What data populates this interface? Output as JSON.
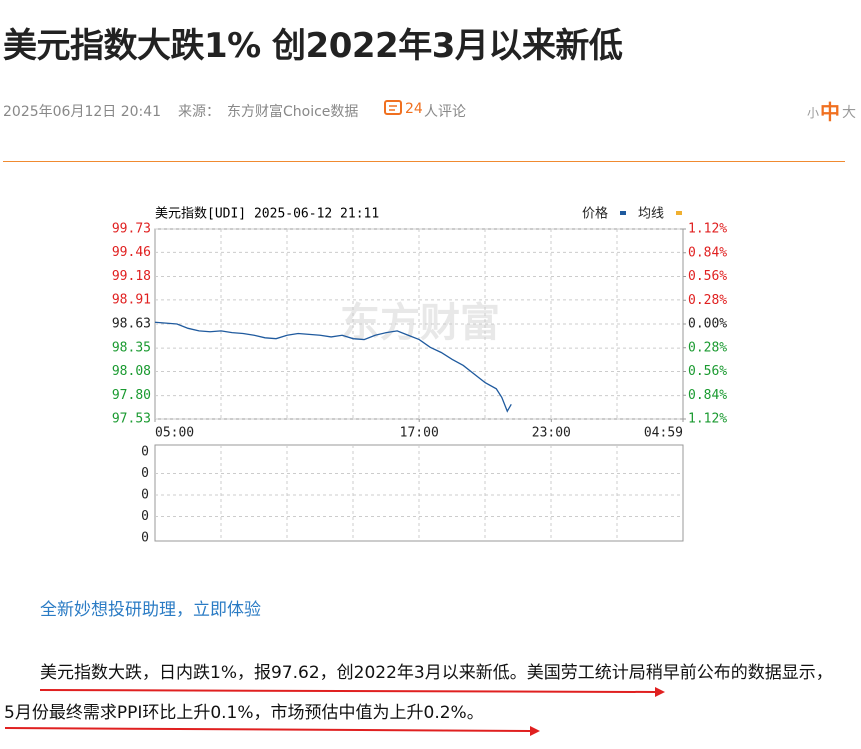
{
  "header": {
    "title": "美元指数大跌1% 创2022年3月以来新低",
    "datetime": "2025年06月12日 20:41",
    "source_label": "来源：",
    "source": "东方财富Choice数据",
    "comment_count": "24",
    "comment_label": "人评论",
    "font_sizes": [
      "小",
      "中",
      "大"
    ]
  },
  "chart_data": {
    "type": "line",
    "title": "美元指数[UDI] 2025-06-12 21:11",
    "watermark": "东方财富",
    "x": [
      5,
      5.5,
      6,
      6.5,
      7,
      7.5,
      8,
      8.5,
      9,
      9.5,
      10,
      10.5,
      11,
      11.5,
      12,
      12.5,
      13,
      13.5,
      14,
      14.5,
      15,
      15.5,
      16,
      16.5,
      17,
      17.5,
      18,
      18.5,
      19,
      19.5,
      20,
      20.5,
      20.75,
      21,
      21.18
    ],
    "series": [
      {
        "name": "价格",
        "color": "#1f5a9e",
        "values": [
          98.65,
          98.64,
          98.63,
          98.58,
          98.55,
          98.54,
          98.55,
          98.53,
          98.52,
          98.5,
          98.47,
          98.46,
          98.5,
          98.52,
          98.51,
          98.5,
          98.48,
          98.5,
          98.46,
          98.45,
          98.5,
          98.53,
          98.55,
          98.5,
          98.45,
          98.36,
          98.3,
          98.22,
          98.15,
          98.05,
          97.95,
          97.88,
          97.78,
          97.62,
          97.7
        ]
      },
      {
        "name": "均线",
        "color": "#f0b030",
        "values": [
          null,
          null,
          null,
          null,
          null,
          null,
          null,
          null,
          null,
          null,
          null,
          null,
          null,
          null,
          null,
          null,
          null,
          null,
          null,
          null,
          null,
          null,
          null,
          null,
          null,
          null,
          null,
          null,
          null,
          null,
          null,
          null,
          null,
          null,
          null
        ]
      }
    ],
    "xlim": [
      5,
      28.98
    ],
    "xticks": [
      {
        "value": 5,
        "label": "05:00"
      },
      {
        "value": 17,
        "label": "17:00"
      },
      {
        "value": 23,
        "label": "23:00"
      },
      {
        "value": 28.98,
        "label": "04:59"
      }
    ],
    "ylim": [
      97.53,
      99.73
    ],
    "yticks": [
      99.73,
      99.46,
      99.18,
      98.91,
      98.63,
      98.35,
      98.08,
      {
        "value": 97.8,
        "label": "97.80"
      },
      97.53
    ],
    "y2lim": [
      -1.12,
      1.12
    ],
    "y2ticks": [
      {
        "value": 1.12,
        "label": "1.12%"
      },
      {
        "value": 0.84,
        "label": "0.84%"
      },
      {
        "value": 0.56,
        "label": "0.56%"
      },
      {
        "value": 0.28,
        "label": "0.28%"
      },
      {
        "value": 0,
        "label": "0.00%"
      },
      {
        "value": -0.28,
        "label": "0.28%"
      },
      {
        "value": -0.56,
        "label": "0.56%"
      },
      {
        "value": -0.84,
        "label": "0.84%"
      },
      {
        "value": -1.12,
        "label": "1.12%"
      }
    ],
    "up_color": "#e02020",
    "down_color": "#1a9a30",
    "grid": true,
    "volume_axis_labels": [
      "0",
      "0",
      "0",
      "0",
      "0"
    ]
  },
  "link": "全新妙想投研助理，立即体验",
  "paragraph": "美元指数大跌，日内跌1%，报97.62，创2022年3月以来新低。美国劳工统计局稍早前公布的数据显示，5月份最终需求PPI环比上升0.1%，市场预估中值为上升0.2%。"
}
